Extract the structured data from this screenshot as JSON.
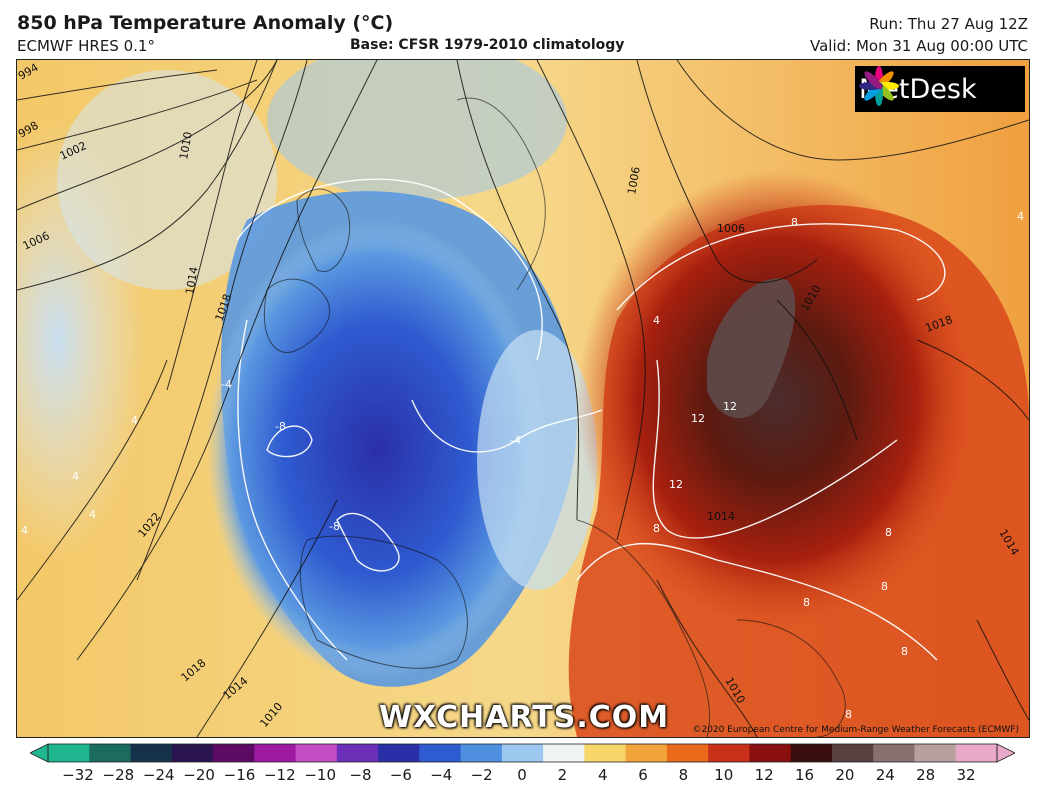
{
  "header": {
    "title": "850 hPa Temperature Anomaly (°C)",
    "model": "ECMWF HRES 0.1°",
    "base": "Base: CFSR 1979-2010 climatology",
    "run": "Run: Thu 27 Aug 12Z",
    "valid": "Valid: Mon 31 Aug 00:00 UTC"
  },
  "logo": {
    "text": "MetDesk",
    "icon": "metdesk-flower-icon"
  },
  "watermark": "WXCHARTS.COM",
  "copyright": "©2020 European Centre for Medium-Range Weather Forecasts (ECMWF)",
  "colorbar": {
    "ticks": [
      "−32",
      "−28",
      "−24",
      "−20",
      "−16",
      "−12",
      "−10",
      "−8",
      "−6",
      "−4",
      "−2",
      "0",
      "2",
      "4",
      "6",
      "8",
      "10",
      "12",
      "16",
      "20",
      "24",
      "28",
      "32"
    ],
    "colors": [
      "#1fb58f",
      "#1b6b5e",
      "#16324a",
      "#2a1550",
      "#5c0a63",
      "#9e1aa0",
      "#c24cc4",
      "#6b2fb8",
      "#2a2fa8",
      "#2f5bd0",
      "#4f8fe0",
      "#9cc8ef",
      "#f0f4f0",
      "#f6d56a",
      "#f2a43a",
      "#e86a1a",
      "#c9301a",
      "#8a1010",
      "#3a0d0d",
      "#5a4040",
      "#8a7070",
      "#b8a0a0",
      "#e8a8c8"
    ]
  },
  "isobar_labels": [
    "994",
    "998",
    "1002",
    "1006",
    "1010",
    "1014",
    "1018",
    "1022",
    "1006",
    "1006",
    "1010",
    "1018",
    "1014",
    "1018",
    "1010",
    "1014",
    "1010",
    "1014"
  ],
  "anomaly_labels": [
    "-8",
    "-8",
    "-4",
    "-4",
    "4",
    "4",
    "4",
    "4",
    "4",
    "8",
    "8",
    "8",
    "8",
    "8",
    "8",
    "12",
    "12",
    "12",
    "4",
    "8"
  ]
}
